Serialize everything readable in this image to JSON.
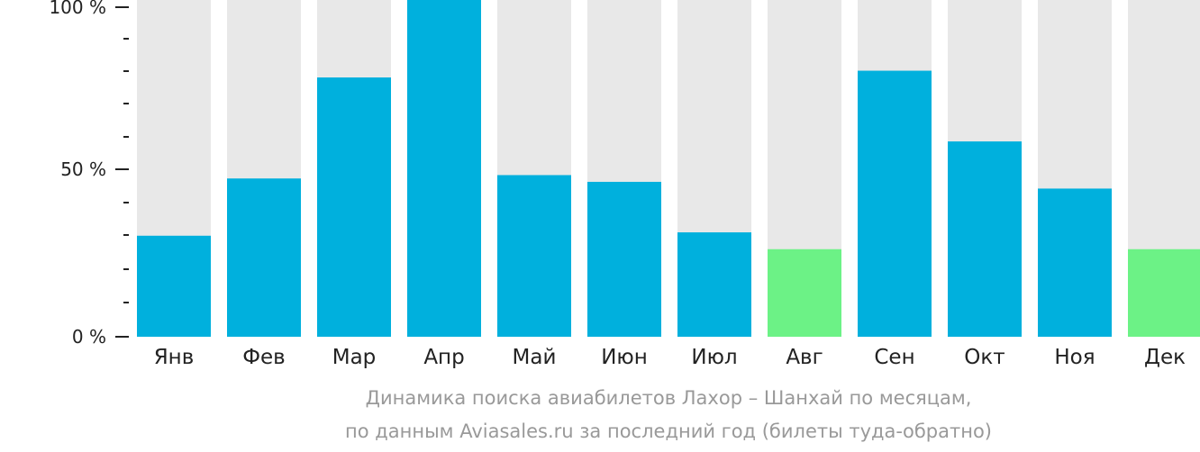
{
  "chart_data": {
    "type": "bar",
    "stacked_background": true,
    "categories": [
      "Янв",
      "Фев",
      "Мар",
      "Апр",
      "Май",
      "Июн",
      "Июл",
      "Авг",
      "Сен",
      "Окт",
      "Ноя",
      "Дек"
    ],
    "values": [
      30,
      47,
      77,
      100,
      48,
      46,
      31,
      26,
      79,
      58,
      44,
      26
    ],
    "highlight": [
      false,
      false,
      false,
      false,
      false,
      false,
      false,
      true,
      false,
      false,
      false,
      true
    ],
    "ylim": [
      0,
      100
    ],
    "yticks": [
      "0 %",
      "50 %",
      "100 %"
    ],
    "colors": {
      "bar": "#00b0dd",
      "highlight": "#6cf286",
      "background": "#e8e8e8",
      "axis": "#222222"
    }
  },
  "caption": {
    "line1": "Динамика поиска авиабилетов Лахор – Шанхай по месяцам,",
    "line2": "по данным Aviasales.ru за последний год (билеты туда-обратно)"
  }
}
